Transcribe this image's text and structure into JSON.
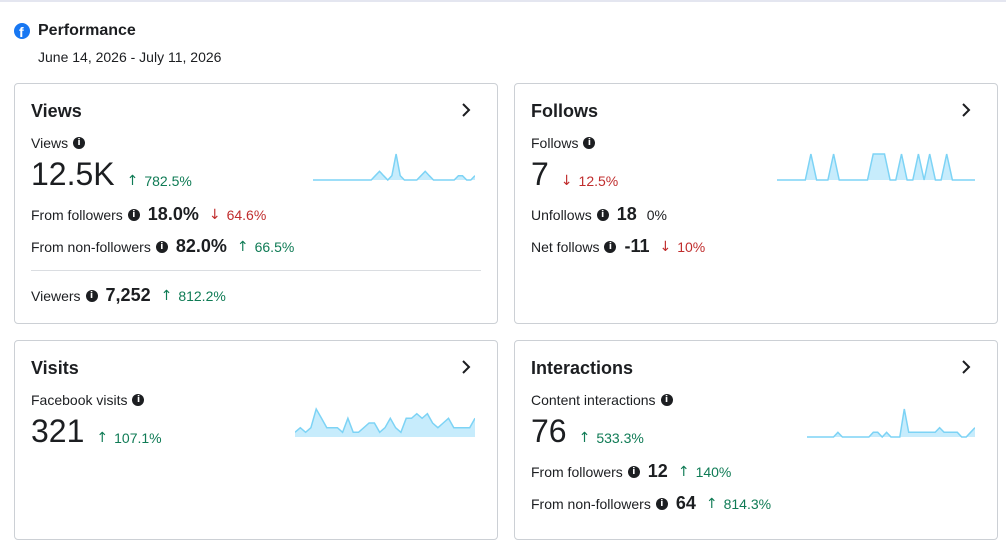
{
  "header": {
    "title": "Performance",
    "date_range": "June 14, 2026 - July 11, 2026"
  },
  "views": {
    "title": "Views",
    "label": "Views",
    "value": "12.5K",
    "delta": "782.5%",
    "from_followers_label": "From followers",
    "from_followers_value": "18.0%",
    "from_followers_delta": "64.6%",
    "from_nonfollowers_label": "From non-followers",
    "from_nonfollowers_value": "82.0%",
    "from_nonfollowers_delta": "66.5%",
    "viewers_label": "Viewers",
    "viewers_value": "7,252",
    "viewers_delta": "812.2%"
  },
  "follows": {
    "title": "Follows",
    "label": "Follows",
    "value": "7",
    "delta": "12.5%",
    "unfollows_label": "Unfollows",
    "unfollows_value": "18",
    "unfollows_delta": "0%",
    "net_label": "Net follows",
    "net_value": "-11",
    "net_delta": "10%"
  },
  "visits": {
    "title": "Visits",
    "label": "Facebook visits",
    "value": "321",
    "delta": "107.1%"
  },
  "interactions": {
    "title": "Interactions",
    "label": "Content interactions",
    "value": "76",
    "delta": "533.3%",
    "from_followers_label": "From followers",
    "from_followers_value": "12",
    "from_followers_delta": "140%",
    "from_nonfollowers_label": "From non-followers",
    "from_nonfollowers_value": "64",
    "from_nonfollowers_delta": "814.3%"
  },
  "colors": {
    "up": "#0f7b55",
    "down": "#c02d2d",
    "spark_fill": "#c7ecfc",
    "spark_line": "#7dd3f5",
    "brand": "#1877f2"
  },
  "sparklines": {
    "views": [
      0,
      0,
      0,
      0,
      0,
      0,
      0,
      0,
      0,
      0,
      0,
      0,
      0,
      0,
      0,
      1,
      2,
      1,
      0,
      1,
      6,
      1,
      0,
      0,
      0,
      0,
      1,
      2,
      1,
      0,
      0,
      0,
      0,
      0,
      0,
      1,
      1,
      0,
      0,
      1
    ],
    "follows": [
      0,
      0,
      0,
      0,
      0,
      0,
      1,
      0,
      0,
      0,
      1,
      0,
      0,
      0,
      0,
      0,
      0,
      1,
      1,
      1,
      0,
      0,
      1,
      0,
      0,
      1,
      0,
      1,
      0,
      0,
      1,
      0,
      0,
      0,
      0,
      0
    ],
    "visits": [
      1,
      2,
      1,
      2,
      6,
      4,
      2,
      2,
      2,
      1,
      4,
      1,
      1,
      2,
      3,
      3,
      1,
      2,
      4,
      2,
      1,
      4,
      4,
      5,
      4,
      5,
      3,
      2,
      3,
      4,
      2,
      2,
      2,
      2,
      4
    ],
    "interactions": [
      0,
      0,
      0,
      0,
      0,
      0,
      0,
      1,
      0,
      0,
      0,
      0,
      0,
      0,
      0,
      1,
      1,
      0,
      1,
      0,
      0,
      0,
      6,
      1,
      1,
      1,
      1,
      1,
      1,
      1,
      2,
      1,
      1,
      1,
      1,
      0,
      0,
      1,
      2
    ]
  }
}
